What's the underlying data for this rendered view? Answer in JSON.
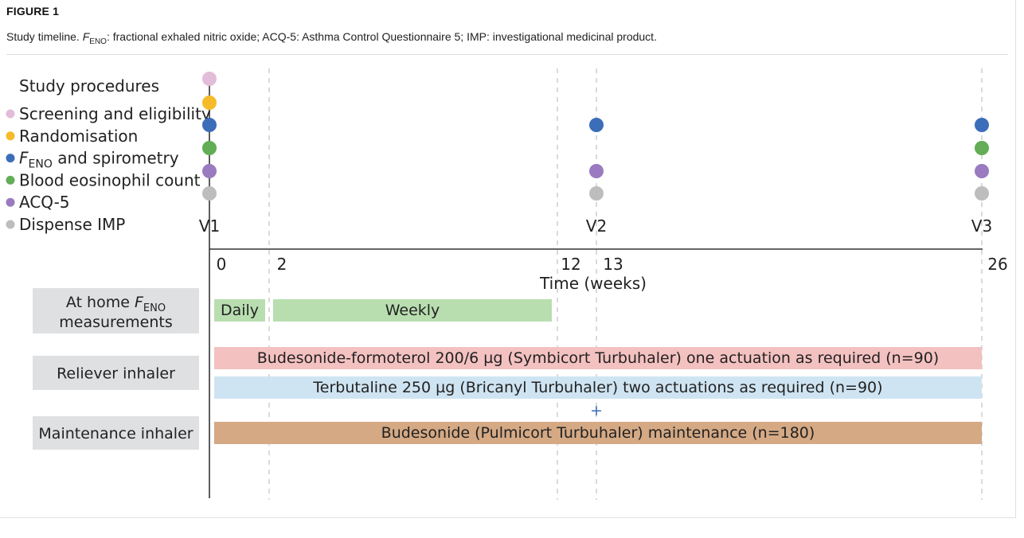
{
  "figure_label": "FIGURE 1",
  "caption": {
    "lead": "Study timeline. ",
    "feno_italic": "F",
    "feno_sub": "ENO",
    "rest": ": fractional exhaled nitric oxide; ACQ-5: Asthma Control Questionnaire 5; IMP: investigational medicinal product."
  },
  "legend": {
    "title": "Study procedures",
    "items": [
      {
        "id": "screening",
        "label": "Screening and eligibility",
        "color": "#e2bcd8"
      },
      {
        "id": "randomisation",
        "label": "Randomisation",
        "color": "#f5bb2a"
      },
      {
        "id": "feno",
        "label_italic": "F",
        "label_sub": "ENO",
        "label_rest": " and spirometry",
        "color": "#3b6db8"
      },
      {
        "id": "eosinophil",
        "label": "Blood eosinophil count",
        "color": "#62ad55"
      },
      {
        "id": "acq5",
        "label": "ACQ-5",
        "color": "#9a7bbf"
      },
      {
        "id": "dispense",
        "label": "Dispense IMP",
        "color": "#bdbdbd"
      }
    ]
  },
  "timeline": {
    "week_min": 0,
    "week_max": 26,
    "ticks": [
      {
        "week": 0,
        "label": "0"
      },
      {
        "week": 2,
        "label": "2"
      },
      {
        "week": 12,
        "label": "12"
      },
      {
        "week": 13,
        "label": "13"
      },
      {
        "week": 26,
        "label": "26"
      }
    ],
    "axis_label": "Time (weeks)",
    "visits": [
      {
        "label": "V1",
        "week": 0,
        "procedures": [
          "screening",
          "randomisation",
          "feno",
          "eosinophil",
          "acq5",
          "dispense"
        ]
      },
      {
        "label": "V2",
        "week": 13,
        "procedures": [
          "feno",
          "acq5",
          "dispense"
        ]
      },
      {
        "label": "V3",
        "week": 26,
        "procedures": [
          "feno",
          "eosinophil",
          "acq5",
          "dispense"
        ]
      }
    ]
  },
  "rows": [
    {
      "id": "home-feno",
      "label_lead": "At home ",
      "label_italic": "F",
      "label_sub": "ENO",
      "label_line2": "measurements",
      "bars": [
        {
          "id": "daily",
          "label": "Daily",
          "start_week": 0,
          "end_week": 2,
          "color": "#b8deb0"
        },
        {
          "id": "weekly",
          "label": "Weekly",
          "start_week": 2,
          "end_week": 12,
          "color": "#b8deb0"
        }
      ]
    },
    {
      "id": "reliever",
      "label": "Reliever inhaler",
      "bars": [
        {
          "id": "budesonide-formoterol",
          "label": "Budesonide-formoterol 200/6 µg (Symbicort Turbuhaler) one actuation as required (n=90)",
          "start_week": 0,
          "end_week": 26,
          "color": "#f4c1c1"
        },
        {
          "id": "terbutaline",
          "label": "Terbutaline 250 µg (Bricanyl Turbuhaler) two actuations as required (n=90)",
          "start_week": 0,
          "end_week": 26,
          "color": "#cfe4f2"
        }
      ],
      "plus": "+"
    },
    {
      "id": "maintenance",
      "label": "Maintenance inhaler",
      "bars": [
        {
          "id": "budesonide",
          "label": "Budesonide (Pulmicort Turbuhaler) maintenance (n=180)",
          "start_week": 0,
          "end_week": 26,
          "color": "#d4a984"
        }
      ]
    }
  ],
  "colors": {
    "row_label_bg": "#dfe0e2",
    "axis": "#333333",
    "dashed": "#b5b5b5"
  }
}
